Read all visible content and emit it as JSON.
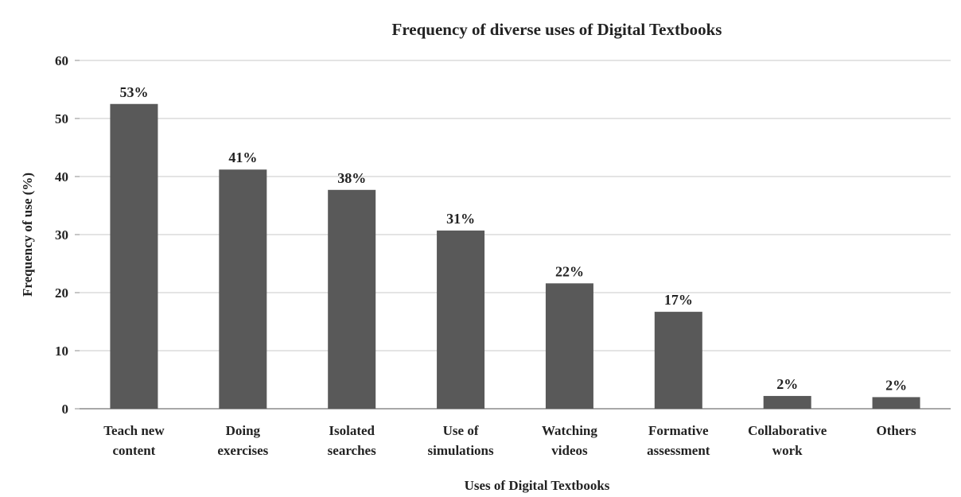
{
  "chart_data": {
    "type": "bar",
    "title": "Frequency of diverse uses of Digital Textbooks",
    "xlabel": "Uses of Digital Textbooks",
    "ylabel": "Frequency of use (%)",
    "ylim": [
      0,
      60
    ],
    "yticks": [
      0,
      10,
      20,
      30,
      40,
      50,
      60
    ],
    "grid": true,
    "bar_color": "#595959",
    "categories": [
      [
        "Teach new",
        "content"
      ],
      [
        "Doing",
        "exercises"
      ],
      [
        "Isolated",
        "searches"
      ],
      [
        "Use of",
        "simulations"
      ],
      [
        "Watching",
        "videos"
      ],
      [
        "Formative",
        "assessment"
      ],
      [
        "Collaborative",
        "work"
      ],
      [
        "Others"
      ]
    ],
    "values": [
      52.5,
      41.2,
      37.7,
      30.7,
      21.6,
      16.7,
      2.2,
      2.0
    ],
    "data_labels": [
      "53%",
      "41%",
      "38%",
      "31%",
      "22%",
      "17%",
      "2%",
      "2%"
    ]
  }
}
